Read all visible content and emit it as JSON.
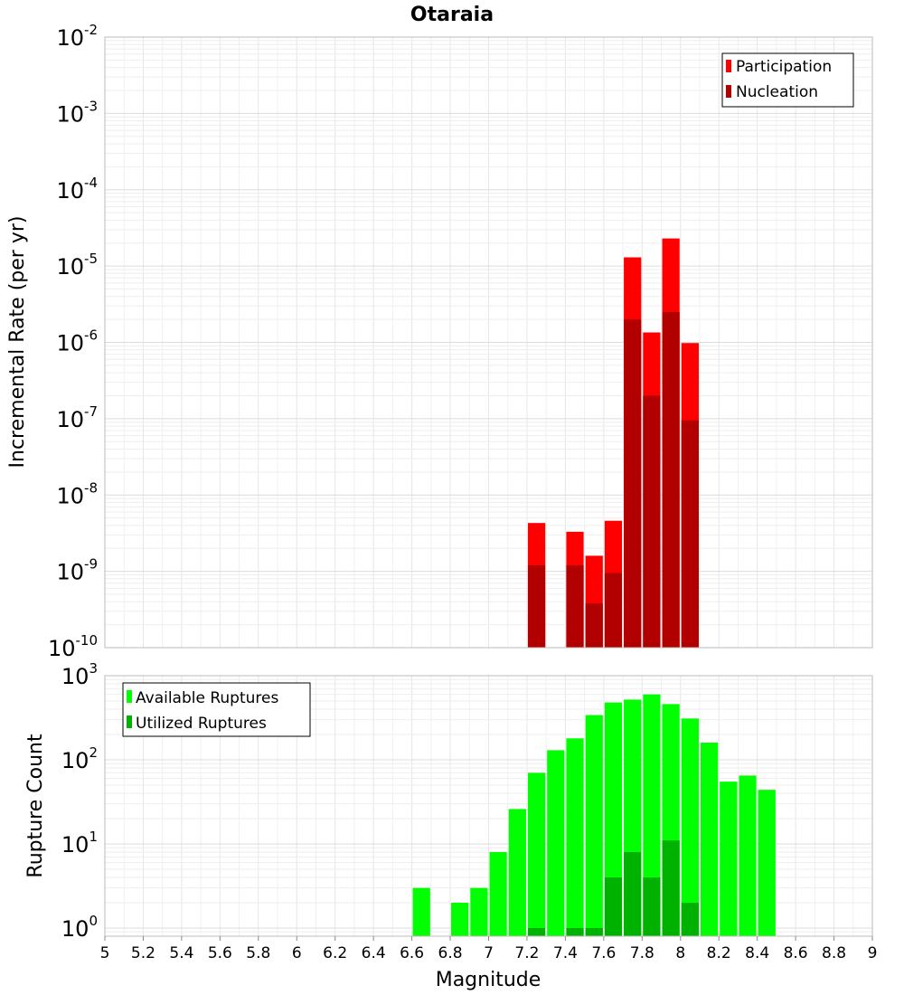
{
  "chart_data": [
    {
      "type": "bar",
      "title": "Otaraia",
      "ylabel": "Incremental Rate (per yr)",
      "xlabel": "",
      "yscale": "log",
      "ylim": [
        1e-10,
        0.01
      ],
      "xlim": [
        5,
        9
      ],
      "y_ticks": [
        {
          "base": "10",
          "exp": "-10"
        },
        {
          "base": "10",
          "exp": "-9"
        },
        {
          "base": "10",
          "exp": "-8"
        },
        {
          "base": "10",
          "exp": "-7"
        },
        {
          "base": "10",
          "exp": "-6"
        },
        {
          "base": "10",
          "exp": "-5"
        },
        {
          "base": "10",
          "exp": "-4"
        },
        {
          "base": "10",
          "exp": "-3"
        },
        {
          "base": "10",
          "exp": "-2"
        }
      ],
      "legend_position": "top-right",
      "series": [
        {
          "name": "Participation",
          "color": "#ff0000",
          "x": [
            7.25,
            7.45,
            7.55,
            7.65,
            7.75,
            7.85,
            7.95,
            8.05
          ],
          "values": [
            4.3e-09,
            3.3e-09,
            1.6e-09,
            4.6e-09,
            1.3e-05,
            1.35e-06,
            2.3e-05,
            9.8e-07
          ]
        },
        {
          "name": "Nucleation",
          "color": "#b20000",
          "x": [
            7.25,
            7.45,
            7.55,
            7.65,
            7.75,
            7.85,
            7.95,
            8.05
          ],
          "values": [
            1.2e-09,
            1.2e-09,
            3.8e-10,
            9.5e-10,
            2e-06,
            2e-07,
            2.5e-06,
            9.5e-08
          ]
        }
      ]
    },
    {
      "type": "bar",
      "title": "",
      "ylabel": "Rupture Count",
      "xlabel": "Magnitude",
      "yscale": "log",
      "ylim": [
        0.8,
        1000
      ],
      "xlim": [
        5,
        9
      ],
      "x_ticks": [
        "5",
        "5.2",
        "5.4",
        "5.6",
        "5.8",
        "6",
        "6.2",
        "6.4",
        "6.6",
        "6.8",
        "7",
        "7.2",
        "7.4",
        "7.6",
        "7.8",
        "8",
        "8.2",
        "8.4",
        "8.6",
        "8.8",
        "9"
      ],
      "y_ticks": [
        {
          "base": "10",
          "exp": "0"
        },
        {
          "base": "10",
          "exp": "1"
        },
        {
          "base": "10",
          "exp": "2"
        },
        {
          "base": "10",
          "exp": "3"
        }
      ],
      "legend_position": "top-left",
      "series": [
        {
          "name": "Available Ruptures",
          "color": "#00ff00",
          "x": [
            6.65,
            6.85,
            6.95,
            7.05,
            7.15,
            7.25,
            7.35,
            7.45,
            7.55,
            7.65,
            7.75,
            7.85,
            7.95,
            8.05,
            8.15,
            8.25,
            8.35,
            8.45
          ],
          "values": [
            3,
            2,
            3,
            8,
            26,
            70,
            130,
            180,
            340,
            480,
            520,
            600,
            460,
            310,
            160,
            55,
            65,
            44
          ]
        },
        {
          "name": "Utilized Ruptures",
          "color": "#00b200",
          "x": [
            7.25,
            7.45,
            7.55,
            7.65,
            7.75,
            7.85,
            7.95,
            8.05
          ],
          "values": [
            1,
            1,
            1,
            4,
            8,
            4,
            11,
            2
          ]
        }
      ]
    }
  ]
}
